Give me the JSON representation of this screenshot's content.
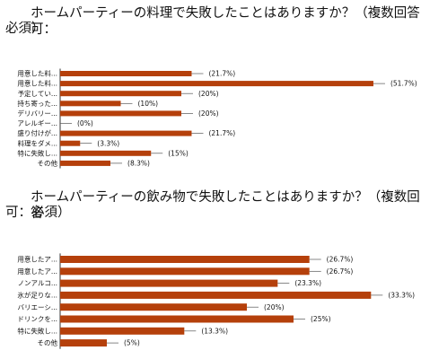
{
  "chart_data": [
    {
      "type": "bar",
      "orientation": "horizontal",
      "title_line1": "ホームパーティーの料理で失敗したことはありますか？（複数回答可：",
      "title_line2": "必須）",
      "categories": [
        "用意した料...",
        "用意した料...",
        "予定してい...",
        "持ち寄った...",
        "デリバリー...",
        "アレルギー...",
        "盛り付けが...",
        "料理をダメ...",
        "特に失敗し...",
        "その他"
      ],
      "values": [
        21.7,
        51.7,
        20,
        10,
        20,
        0,
        21.7,
        3.3,
        15,
        8.3
      ],
      "labels": [
        "(21.7%)",
        "(51.7%)",
        "(20%)",
        "(10%)",
        "(20%)",
        "(0%)",
        "(21.7%)",
        "(3.3%)",
        "(15%)",
        "(8.3%)"
      ],
      "xlim": [
        0,
        100
      ],
      "bar_color": "#b5400b"
    },
    {
      "type": "bar",
      "orientation": "horizontal",
      "title_line1": "ホームパーティーの飲み物で失敗したことはありますか？（複数回答",
      "title_line2": "可：必須）",
      "categories": [
        "用意したア...",
        "用意したア...",
        "ノンアルコ...",
        "氷が足りな...",
        "バリエーシ...",
        "ドリンクを...",
        "特に失敗し...",
        "その他"
      ],
      "values": [
        26.7,
        26.7,
        23.3,
        33.3,
        20,
        25,
        13.3,
        5
      ],
      "labels": [
        "(26.7%)",
        "(26.7%)",
        "(23.3%)",
        "(33.3%)",
        "(20%)",
        "(25%)",
        "(13.3%)",
        "(5%)"
      ],
      "xlim": [
        0,
        100
      ],
      "bar_color": "#b5400b"
    }
  ]
}
